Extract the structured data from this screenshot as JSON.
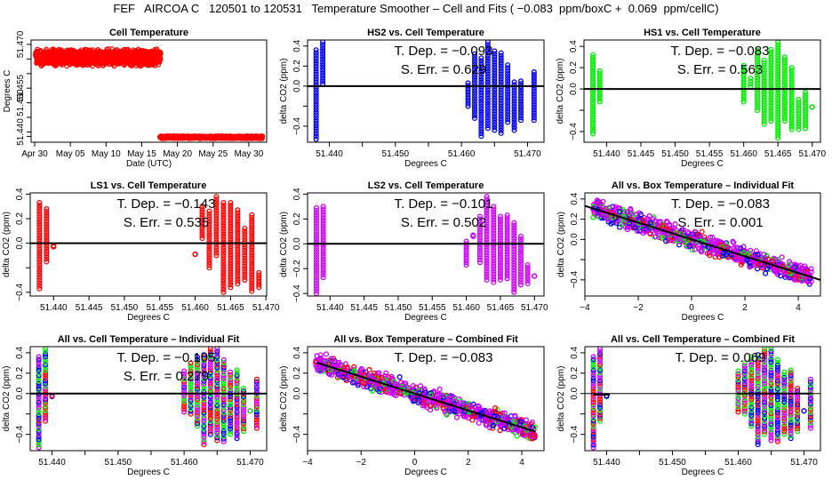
{
  "title": "FEF   AIRCOA C   120501 to 120531   Temperature Smoother – Cell and Fits ( −0.083  ppm/boxC +  0.069  ppm/cellC)",
  "chart_data": [
    {
      "id": "cell-temp",
      "type": "scatter",
      "title": "Cell Temperature",
      "xlabel": "Date (UTC)",
      "ylabel": "Degrees C",
      "xlim": [
        0,
        33
      ],
      "ylim": [
        51.4365,
        51.4715
      ],
      "xticks": [
        {
          "v": 0.5,
          "label": "Apr 30"
        },
        {
          "v": 5.5,
          "label": "May 05"
        },
        {
          "v": 10.5,
          "label": "May 10"
        },
        {
          "v": 15.5,
          "label": "May 15"
        },
        {
          "v": 20.5,
          "label": "May 20"
        },
        {
          "v": 25.5,
          "label": "May 25"
        },
        {
          "v": 30.5,
          "label": "May 30"
        }
      ],
      "yticks": [
        {
          "v": 51.47,
          "label": "51.470"
        },
        {
          "v": 51.465,
          "label": ""
        },
        {
          "v": 51.46,
          "label": ""
        },
        {
          "v": 51.455,
          "label": "51.455"
        },
        {
          "v": 51.45,
          "label": "51.450"
        },
        {
          "v": 51.445,
          "label": ""
        },
        {
          "v": 51.44,
          "label": "51.440"
        },
        {
          "v": 51.4385,
          "label": ""
        }
      ],
      "series": [
        {
          "name": "cell",
          "color": "#ff0000",
          "segments": [
            {
              "x0": 0.5,
              "x1": 18.0,
              "ymin": 51.4625,
              "ymax": 51.4685,
              "center": 51.4655
            },
            {
              "x0": 18.0,
              "x1": 32.3,
              "ymin": 51.4378,
              "ymax": 51.4388,
              "center": 51.4382
            }
          ]
        }
      ]
    },
    {
      "id": "hs2",
      "type": "scatter",
      "title": "HS2 vs. Cell Temperature",
      "xlabel": "Degrees C",
      "ylabel": "delta CO2 (ppm)",
      "xlim": [
        51.4367,
        51.4725
      ],
      "ylim": [
        -0.56,
        0.46
      ],
      "xticks": [
        51.44,
        51.445,
        51.45,
        51.455,
        51.46,
        51.465,
        51.47
      ],
      "xticklabels": [
        "51.440",
        "",
        "51.450",
        "",
        "51.460",
        "",
        "51.470"
      ],
      "yticks": [
        0.4,
        0.2,
        0.0,
        -0.2,
        -0.4
      ],
      "yticklabels": [
        "0.4",
        "0.2",
        "0.0",
        "",
        "−0.4"
      ],
      "annotations": [
        "T. Dep. =  −0.093",
        "S. Err. =  0.629"
      ],
      "colors": [
        "#0000ee"
      ],
      "fit": {
        "slope": 0.0,
        "intercept": 0.0,
        "x_from": 51.4367,
        "x_to": 51.4725
      },
      "clusters": [
        [
          51.438,
          -0.53,
          0.36
        ],
        [
          51.439,
          0.02,
          0.44
        ],
        [
          51.461,
          -0.2,
          0.03
        ],
        [
          51.462,
          -0.32,
          0.32
        ],
        [
          51.463,
          -0.5,
          0.28
        ],
        [
          51.464,
          -0.42,
          0.44
        ],
        [
          51.465,
          -0.44,
          0.35
        ],
        [
          51.466,
          -0.47,
          0.33
        ],
        [
          51.467,
          -0.36,
          0.21
        ],
        [
          51.468,
          -0.44,
          0.04
        ],
        [
          51.469,
          -0.34,
          0.05
        ],
        [
          51.471,
          -0.34,
          0.14
        ]
      ]
    },
    {
      "id": "hs1",
      "type": "scatter",
      "title": "HS1 vs. Cell Temperature",
      "xlabel": "Degrees C",
      "ylabel": "delta CO2 (ppm)",
      "xlim": [
        51.4367,
        51.4712
      ],
      "ylim": [
        -0.5,
        0.46
      ],
      "xticks": [
        51.44,
        51.445,
        51.45,
        51.455,
        51.46,
        51.465,
        51.47
      ],
      "xticklabels": [
        "51.440",
        "51.445",
        "51.450",
        "51.455",
        "51.460",
        "51.465",
        "51.470"
      ],
      "yticks": [
        0.4,
        0.2,
        0.0,
        -0.2,
        -0.4
      ],
      "yticklabels": [
        "0.4",
        "0.2",
        "0.0",
        "",
        "−0.4"
      ],
      "annotations": [
        "T. Dep. =  −0.083",
        "S. Err. =  0.563"
      ],
      "colors": [
        "#00ee00"
      ],
      "fit": {
        "slope": 0.0,
        "intercept": 0.0,
        "x_from": 51.4367,
        "x_to": 51.4712
      },
      "clusters": [
        [
          51.438,
          -0.42,
          0.32
        ],
        [
          51.439,
          -0.12,
          0.17
        ],
        [
          51.46,
          -0.12,
          0.22
        ],
        [
          51.461,
          0.02,
          0.1
        ],
        [
          51.462,
          -0.2,
          0.36
        ],
        [
          51.463,
          -0.33,
          0.27
        ],
        [
          51.464,
          -0.3,
          0.37
        ],
        [
          51.465,
          -0.46,
          0.44
        ],
        [
          51.466,
          -0.3,
          0.3
        ],
        [
          51.467,
          -0.38,
          0.2
        ],
        [
          51.468,
          -0.38,
          -0.1
        ],
        [
          51.469,
          -0.37,
          -0.03
        ],
        [
          51.47,
          -0.17,
          -0.17
        ]
      ]
    },
    {
      "id": "ls1",
      "type": "scatter",
      "title": "LS1 vs. Cell Temperature",
      "xlabel": "Degrees C",
      "ylabel": "delta CO2 (ppm)",
      "xlim": [
        51.4367,
        51.4701
      ],
      "ylim": [
        -0.43,
        0.41
      ],
      "xticks": [
        51.44,
        51.445,
        51.45,
        51.455,
        51.46,
        51.465,
        51.47
      ],
      "xticklabels": [
        "51.440",
        "51.445",
        "51.450",
        "51.455",
        "51.460",
        "51.465",
        "51.470"
      ],
      "yticks": [
        0.4,
        0.2,
        0.0,
        -0.2,
        -0.4
      ],
      "yticklabels": [
        "0.4",
        "0.2",
        "0.0",
        "",
        "−0.4"
      ],
      "annotations": [
        "T. Dep. =  −0.143",
        "S. Err. =  0.535"
      ],
      "colors": [
        "#ff0000"
      ],
      "fit": {
        "slope": 0.0,
        "intercept": 0.0,
        "x_from": 51.4367,
        "x_to": 51.4701
      },
      "clusters": [
        [
          51.438,
          -0.37,
          0.33
        ],
        [
          51.439,
          -0.15,
          0.28
        ],
        [
          51.44,
          -0.03,
          -0.02
        ],
        [
          51.46,
          -0.09,
          -0.09
        ],
        [
          51.461,
          0.04,
          0.3
        ],
        [
          51.462,
          -0.2,
          0.26
        ],
        [
          51.463,
          -0.1,
          0.38
        ],
        [
          51.464,
          -0.4,
          0.33
        ],
        [
          51.465,
          -0.36,
          0.33
        ],
        [
          51.466,
          -0.33,
          0.27
        ],
        [
          51.467,
          -0.3,
          0.12
        ],
        [
          51.468,
          -0.39,
          0.23
        ],
        [
          51.469,
          -0.36,
          -0.24
        ]
      ]
    },
    {
      "id": "ls2",
      "type": "scatter",
      "title": "LS2 vs. Cell Temperature",
      "xlabel": "Degrees C",
      "ylabel": "delta CO2 (ppm)",
      "xlim": [
        51.4367,
        51.4714
      ],
      "ylim": [
        -0.42,
        0.41
      ],
      "xticks": [
        51.44,
        51.445,
        51.45,
        51.455,
        51.46,
        51.465,
        51.47
      ],
      "xticklabels": [
        "51.440",
        "51.445",
        "51.450",
        "51.455",
        "51.460",
        "51.465",
        "51.470"
      ],
      "yticks": [
        0.4,
        0.2,
        0.0,
        -0.2,
        -0.4
      ],
      "yticklabels": [
        "0.4",
        "0.2",
        "0.0",
        "−0.2",
        "−0.4"
      ],
      "annotations": [
        "T. Dep. =  −0.101",
        "S. Err. =  0.502"
      ],
      "colors": [
        "#cc00ff"
      ],
      "fit": {
        "slope": 0.0,
        "intercept": 0.0,
        "x_from": 51.4367,
        "x_to": 51.4714
      },
      "clusters": [
        [
          51.438,
          -0.4,
          0.29
        ],
        [
          51.439,
          -0.27,
          0.3
        ],
        [
          51.46,
          -0.17,
          0.02
        ],
        [
          51.461,
          0.06,
          0.07
        ],
        [
          51.462,
          -0.15,
          0.22
        ],
        [
          51.463,
          -0.29,
          0.38
        ],
        [
          51.464,
          -0.31,
          0.3
        ],
        [
          51.465,
          -0.29,
          0.22
        ],
        [
          51.466,
          -0.28,
          0.23
        ],
        [
          51.467,
          -0.39,
          0.17
        ],
        [
          51.468,
          -0.33,
          0.06
        ],
        [
          51.469,
          -0.32,
          -0.17
        ],
        [
          51.47,
          -0.26,
          -0.26
        ]
      ]
    },
    {
      "id": "all-box-ind",
      "type": "scatter",
      "title": "All vs. Box Temperature – Individual Fit",
      "xlabel": "Degrees C",
      "ylabel": "delta CO2 (ppm)",
      "xlim": [
        -4.0,
        4.83
      ],
      "ylim": [
        -0.56,
        0.46
      ],
      "xticks": [
        -4,
        -2,
        0,
        2,
        4
      ],
      "xticklabels": [
        "−4",
        "−2",
        "0",
        "2",
        "4"
      ],
      "yticks": [
        0.4,
        0.2,
        0.0,
        -0.2,
        -0.4
      ],
      "yticklabels": [
        "0.4",
        "0.2",
        "0.0",
        "",
        "−0.4"
      ],
      "annotations": [
        "T. Dep. =  −0.083",
        "S. Err. =  0.001"
      ],
      "colors": [
        "#0000ee",
        "#00ee00",
        "#ff0000",
        "#cc00ff"
      ],
      "fit": {
        "slope": -0.083,
        "intercept": 0.0,
        "x_from": -4.0,
        "x_to": 4.83
      },
      "band": {
        "x0": -3.7,
        "x1": 4.5,
        "slope": -0.083,
        "spread": 0.13
      }
    },
    {
      "id": "all-cell-ind",
      "type": "scatter",
      "title": "All vs. Cell Temperature – Individual Fit",
      "xlabel": "Degrees C",
      "ylabel": "delta CO2 (ppm)",
      "xlim": [
        51.4367,
        51.4725
      ],
      "ylim": [
        -0.56,
        0.46
      ],
      "xticks": [
        51.44,
        51.445,
        51.45,
        51.455,
        51.46,
        51.465,
        51.47
      ],
      "xticklabels": [
        "51.440",
        "",
        "51.450",
        "",
        "51.460",
        "",
        "51.470"
      ],
      "yticks": [
        0.4,
        0.2,
        0.0,
        -0.2,
        -0.4
      ],
      "yticklabels": [
        "0.4",
        "0.2",
        "0.0",
        "",
        "−0.4"
      ],
      "annotations": [
        "T. Dep. =  −0.105",
        "S. Err. =  0.279"
      ],
      "colors": [
        "#0000ee",
        "#00ee00",
        "#ff0000",
        "#cc00ff"
      ],
      "fit": {
        "slope": 0.0,
        "intercept": 0.0,
        "x_from": 51.4597,
        "x_to": 51.4725
      },
      "fit2": {
        "slope": 0.0,
        "intercept": 0.0,
        "x_from": 51.4367,
        "x_to": 51.4597
      },
      "clusters": [
        [
          51.438,
          -0.53,
          0.36
        ],
        [
          51.439,
          -0.27,
          0.44
        ],
        [
          51.44,
          -0.03,
          -0.02
        ],
        [
          51.46,
          -0.18,
          0.22
        ],
        [
          51.461,
          -0.2,
          0.3
        ],
        [
          51.462,
          -0.32,
          0.36
        ],
        [
          51.463,
          -0.5,
          0.38
        ],
        [
          51.464,
          -0.4,
          0.44
        ],
        [
          51.465,
          -0.46,
          0.44
        ],
        [
          51.466,
          -0.47,
          0.33
        ],
        [
          51.467,
          -0.4,
          0.21
        ],
        [
          51.468,
          -0.44,
          0.23
        ],
        [
          51.469,
          -0.37,
          0.05
        ],
        [
          51.47,
          -0.17,
          -0.17
        ],
        [
          51.471,
          -0.34,
          0.14
        ]
      ]
    },
    {
      "id": "all-box-comb",
      "type": "scatter",
      "title": "All vs. Box Temperature – Combined Fit",
      "xlabel": "Degrees C",
      "ylabel": "delta CO2 (ppm)",
      "xlim": [
        -4.0,
        4.83
      ],
      "ylim": [
        -0.56,
        0.46
      ],
      "xticks": [
        -4,
        -2,
        0,
        2,
        4
      ],
      "xticklabels": [
        "−4",
        "−2",
        "0",
        "2",
        "4"
      ],
      "yticks": [
        0.4,
        0.2,
        0.0,
        -0.2,
        -0.4
      ],
      "yticklabels": [
        "0.4",
        "0.2",
        "0.0",
        "",
        "−0.4"
      ],
      "annotations": [
        "T. Dep. =  −0.083"
      ],
      "colors": [
        "#0000ee",
        "#00ee00",
        "#ff0000",
        "#cc00ff"
      ],
      "fit": {
        "slope": -0.083,
        "intercept": 0.0,
        "x_from": -3.65,
        "x_to": 4.5
      },
      "band": {
        "x0": -3.7,
        "x1": 4.5,
        "slope": -0.083,
        "spread": 0.13
      }
    },
    {
      "id": "all-cell-comb",
      "type": "scatter",
      "title": "All vs. Cell Temperature – Combined Fit",
      "xlabel": "Degrees C",
      "ylabel": "delta CO2 (ppm)",
      "xlim": [
        51.4367,
        51.4725
      ],
      "ylim": [
        -0.56,
        0.46
      ],
      "xticks": [
        51.44,
        51.445,
        51.45,
        51.455,
        51.46,
        51.465,
        51.47
      ],
      "xticklabels": [
        "51.440",
        "",
        "51.450",
        "",
        "51.460",
        "",
        "51.470"
      ],
      "yticks": [
        0.4,
        0.2,
        0.0,
        -0.2,
        -0.4
      ],
      "yticklabels": [
        "0.4",
        "0.2",
        "0.0",
        "",
        "−0.4"
      ],
      "annotations": [
        "T. Dep. =  0.069"
      ],
      "colors": [
        "#0000ee",
        "#00ee00",
        "#ff0000",
        "#cc00ff"
      ],
      "fit": {
        "slope": 0.0,
        "intercept": 0.0,
        "x_from": 51.4598,
        "x_to": 51.4712
      },
      "fit2": {
        "slope": 0.0,
        "intercept": -0.01,
        "x_from": 51.438,
        "x_to": 51.4405
      },
      "clusters": [
        [
          51.438,
          -0.53,
          0.36
        ],
        [
          51.439,
          -0.27,
          0.44
        ],
        [
          51.44,
          -0.03,
          -0.02
        ],
        [
          51.46,
          -0.18,
          0.22
        ],
        [
          51.461,
          -0.2,
          0.3
        ],
        [
          51.462,
          -0.32,
          0.36
        ],
        [
          51.463,
          -0.5,
          0.38
        ],
        [
          51.464,
          -0.4,
          0.44
        ],
        [
          51.465,
          -0.46,
          0.44
        ],
        [
          51.466,
          -0.47,
          0.33
        ],
        [
          51.467,
          -0.4,
          0.21
        ],
        [
          51.468,
          -0.44,
          0.23
        ],
        [
          51.469,
          -0.37,
          0.05
        ],
        [
          51.47,
          -0.17,
          -0.17
        ],
        [
          51.471,
          -0.34,
          0.14
        ]
      ]
    }
  ]
}
